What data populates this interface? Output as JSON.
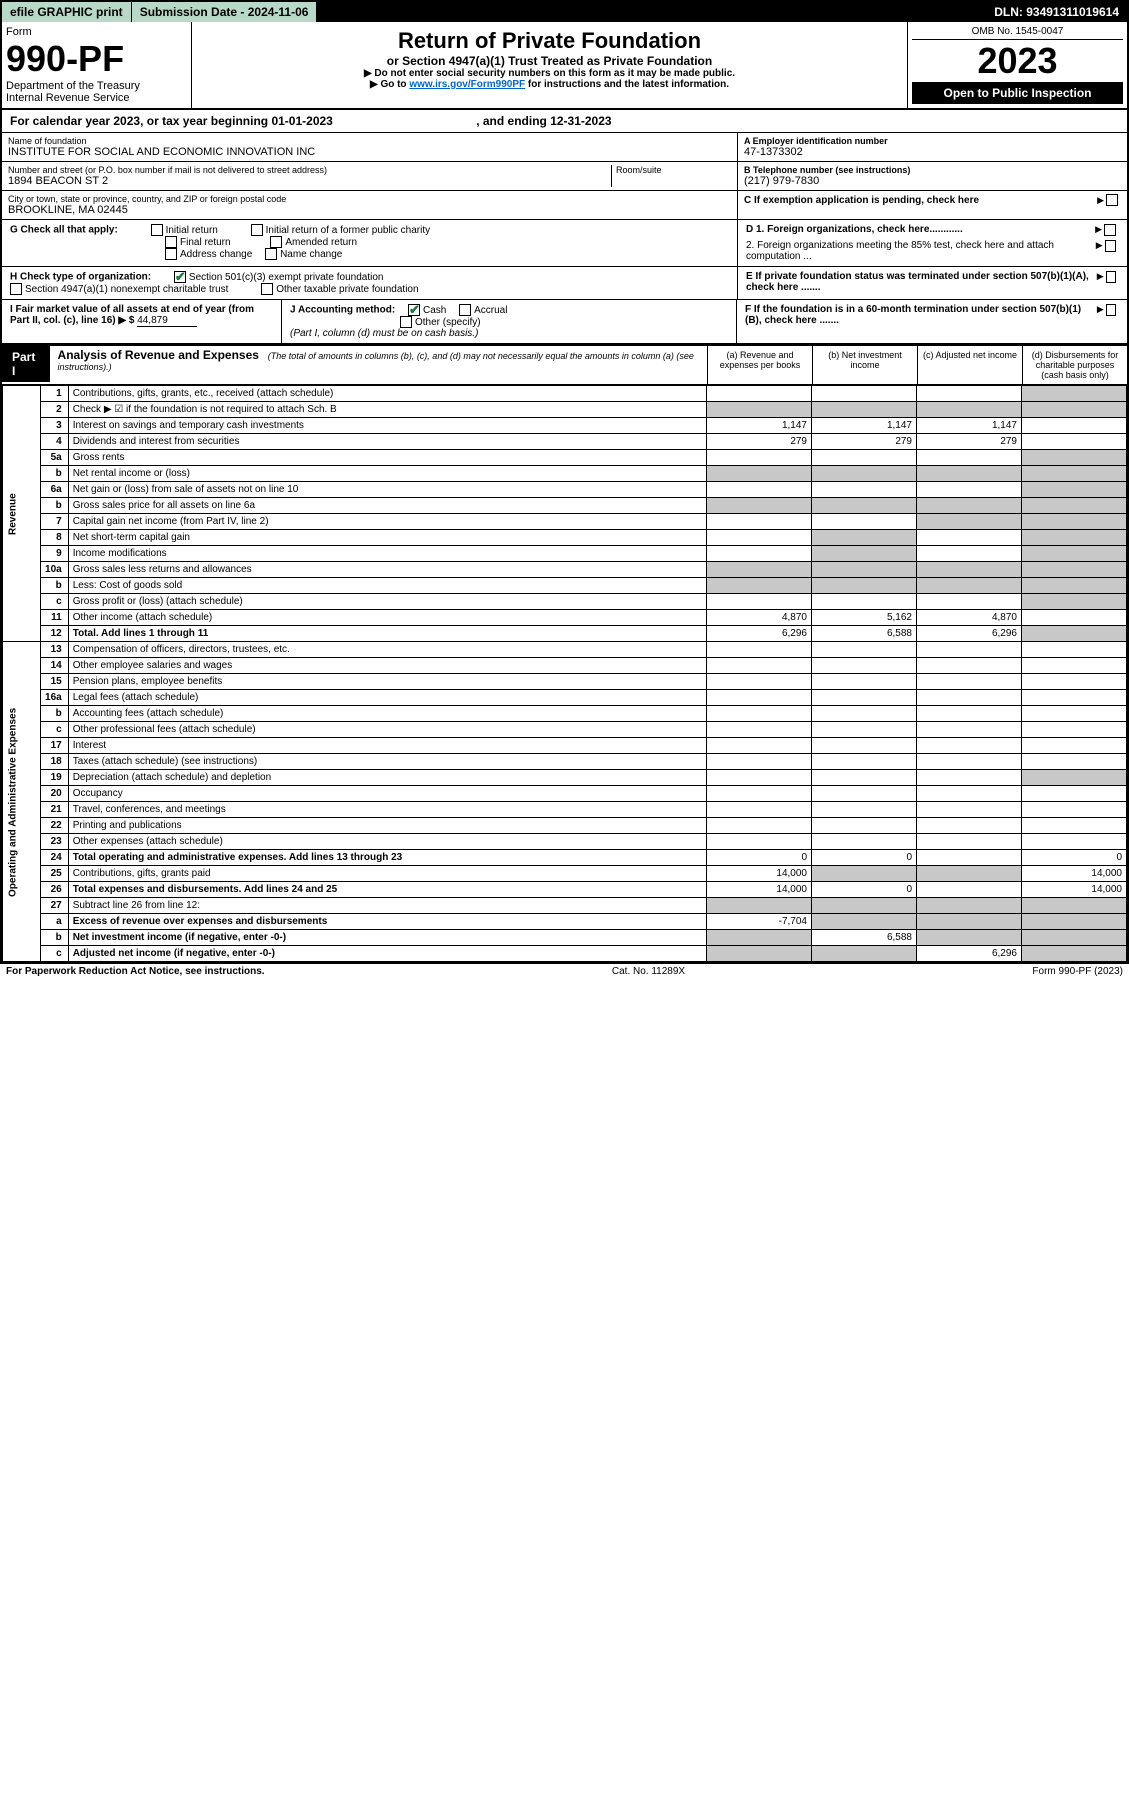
{
  "topbar": {
    "efile": "efile GRAPHIC print",
    "subdate_label": "Submission Date - ",
    "subdate": "2024-11-06",
    "dln_label": "DLN: ",
    "dln": "93491311019614"
  },
  "header": {
    "form_label": "Form",
    "form_no": "990-PF",
    "dept1": "Department of the Treasury",
    "dept2": "Internal Revenue Service",
    "title": "Return of Private Foundation",
    "subtitle": "or Section 4947(a)(1) Trust Treated as Private Foundation",
    "note1": "▶ Do not enter social security numbers on this form as it may be made public.",
    "note2_a": "▶ Go to ",
    "note2_link": "www.irs.gov/Form990PF",
    "note2_b": " for instructions and the latest information.",
    "omb": "OMB No. 1545-0047",
    "year": "2023",
    "openpub": "Open to Public Inspection"
  },
  "cy": {
    "text_a": "For calendar year 2023, or tax year beginning ",
    "begin": "01-01-2023",
    "text_b": ", and ending ",
    "end": "12-31-2023"
  },
  "info": {
    "name_label": "Name of foundation",
    "name": "INSTITUTE FOR SOCIAL AND ECONOMIC INNOVATION INC",
    "addr_label": "Number and street (or P.O. box number if mail is not delivered to street address)",
    "addr": "1894 BEACON ST 2",
    "room_label": "Room/suite",
    "city_label": "City or town, state or province, country, and ZIP or foreign postal code",
    "city": "BROOKLINE, MA  02445",
    "ein_label": "A Employer identification number",
    "ein": "47-1373302",
    "tel_label": "B Telephone number (see instructions)",
    "tel": "(217) 979-7830",
    "c_label": "C If exemption application is pending, check here"
  },
  "g": {
    "label": "G Check all that apply:",
    "o1": "Initial return",
    "o2": "Final return",
    "o3": "Address change",
    "o4": "Initial return of a former public charity",
    "o5": "Amended return",
    "o6": "Name change"
  },
  "d": {
    "d1": "D 1. Foreign organizations, check here............",
    "d2": "2. Foreign organizations meeting the 85% test, check here and attach computation ..."
  },
  "h": {
    "label": "H Check type of organization:",
    "o1": "Section 501(c)(3) exempt private foundation",
    "o2": "Section 4947(a)(1) nonexempt charitable trust",
    "o3": "Other taxable private foundation"
  },
  "e": {
    "text": "E If private foundation status was terminated under section 507(b)(1)(A), check here ......."
  },
  "i": {
    "label": "I Fair market value of all assets at end of year (from Part II, col. (c), line 16) ▶ $",
    "val": "44,879"
  },
  "j": {
    "label": "J Accounting method:",
    "o1": "Cash",
    "o2": "Accrual",
    "o3": "Other (specify)",
    "note": "(Part I, column (d) must be on cash basis.)"
  },
  "f": {
    "text": "F If the foundation is in a 60-month termination under section 507(b)(1)(B), check here ......."
  },
  "part1": {
    "label": "Part I",
    "title": "Analysis of Revenue and Expenses",
    "title_note": "(The total of amounts in columns (b), (c), and (d) may not necessarily equal the amounts in column (a) (see instructions).)",
    "col_a": "(a) Revenue and expenses per books",
    "col_b": "(b) Net investment income",
    "col_c": "(c) Adjusted net income",
    "col_d": "(d) Disbursements for charitable purposes (cash basis only)"
  },
  "side_rev": "Revenue",
  "side_exp": "Operating and Administrative Expenses",
  "rows": [
    {
      "n": "1",
      "d": "Contributions, gifts, grants, etc., received (attach schedule)"
    },
    {
      "n": "2",
      "d": "Check ▶ ☑ if the foundation is not required to attach Sch. B"
    },
    {
      "n": "3",
      "d": "Interest on savings and temporary cash investments",
      "a": "1,147",
      "b": "1,147",
      "c": "1,147"
    },
    {
      "n": "4",
      "d": "Dividends and interest from securities",
      "a": "279",
      "b": "279",
      "c": "279"
    },
    {
      "n": "5a",
      "d": "Gross rents"
    },
    {
      "n": "b",
      "d": "Net rental income or (loss)"
    },
    {
      "n": "6a",
      "d": "Net gain or (loss) from sale of assets not on line 10"
    },
    {
      "n": "b",
      "d": "Gross sales price for all assets on line 6a"
    },
    {
      "n": "7",
      "d": "Capital gain net income (from Part IV, line 2)"
    },
    {
      "n": "8",
      "d": "Net short-term capital gain"
    },
    {
      "n": "9",
      "d": "Income modifications"
    },
    {
      "n": "10a",
      "d": "Gross sales less returns and allowances"
    },
    {
      "n": "b",
      "d": "Less: Cost of goods sold"
    },
    {
      "n": "c",
      "d": "Gross profit or (loss) (attach schedule)"
    },
    {
      "n": "11",
      "d": "Other income (attach schedule)",
      "a": "4,870",
      "b": "5,162",
      "c": "4,870"
    },
    {
      "n": "12",
      "d": "Total. Add lines 1 through 11",
      "a": "6,296",
      "b": "6,588",
      "c": "6,296",
      "bold": true
    },
    {
      "n": "13",
      "d": "Compensation of officers, directors, trustees, etc."
    },
    {
      "n": "14",
      "d": "Other employee salaries and wages"
    },
    {
      "n": "15",
      "d": "Pension plans, employee benefits"
    },
    {
      "n": "16a",
      "d": "Legal fees (attach schedule)"
    },
    {
      "n": "b",
      "d": "Accounting fees (attach schedule)"
    },
    {
      "n": "c",
      "d": "Other professional fees (attach schedule)"
    },
    {
      "n": "17",
      "d": "Interest"
    },
    {
      "n": "18",
      "d": "Taxes (attach schedule) (see instructions)"
    },
    {
      "n": "19",
      "d": "Depreciation (attach schedule) and depletion"
    },
    {
      "n": "20",
      "d": "Occupancy"
    },
    {
      "n": "21",
      "d": "Travel, conferences, and meetings"
    },
    {
      "n": "22",
      "d": "Printing and publications"
    },
    {
      "n": "23",
      "d": "Other expenses (attach schedule)"
    },
    {
      "n": "24",
      "d": "Total operating and administrative expenses. Add lines 13 through 23",
      "a": "0",
      "b": "0",
      "dd": "0",
      "bold": true
    },
    {
      "n": "25",
      "d": "Contributions, gifts, grants paid",
      "a": "14,000",
      "dd": "14,000"
    },
    {
      "n": "26",
      "d": "Total expenses and disbursements. Add lines 24 and 25",
      "a": "14,000",
      "b": "0",
      "dd": "14,000",
      "bold": true
    },
    {
      "n": "27",
      "d": "Subtract line 26 from line 12:"
    },
    {
      "n": "a",
      "d": "Excess of revenue over expenses and disbursements",
      "a": "-7,704",
      "bold": true
    },
    {
      "n": "b",
      "d": "Net investment income (if negative, enter -0-)",
      "b": "6,588",
      "bold": true
    },
    {
      "n": "c",
      "d": "Adjusted net income (if negative, enter -0-)",
      "c": "6,296",
      "bold": true
    }
  ],
  "shading": {
    "1": {
      "d": true
    },
    "2": {
      "a": true,
      "b": true,
      "c": true,
      "d": true
    },
    "5a": {
      "d": true
    },
    "b_rental": {
      "a": true,
      "b": true,
      "c": true,
      "d": true
    },
    "6a": {
      "d": true
    },
    "b_sales": {
      "a": true,
      "b": true,
      "c": true,
      "d": true
    },
    "7": {
      "c": true,
      "d": true
    },
    "8": {
      "b": true,
      "d": true
    },
    "9": {
      "b": true,
      "d": true
    },
    "10a": {
      "a": true,
      "b": true,
      "c": true,
      "d": true
    },
    "b_cogs": {
      "a": true,
      "b": true,
      "c": true,
      "d": true
    },
    "c_gross": {
      "d": true
    },
    "12": {
      "d": true
    },
    "19": {
      "d": true
    },
    "25": {
      "b": true,
      "c": true
    },
    "27": {
      "a": true,
      "b": true,
      "c": true,
      "d": true
    },
    "a_excess": {
      "b": true,
      "c": true,
      "d": true
    },
    "b_nii": {
      "a": true,
      "c": true,
      "d": true
    },
    "c_ani": {
      "a": true,
      "b": true,
      "d": true
    }
  },
  "footer": {
    "left": "For Paperwork Reduction Act Notice, see instructions.",
    "mid": "Cat. No. 11289X",
    "right": "Form 990-PF (2023)"
  }
}
